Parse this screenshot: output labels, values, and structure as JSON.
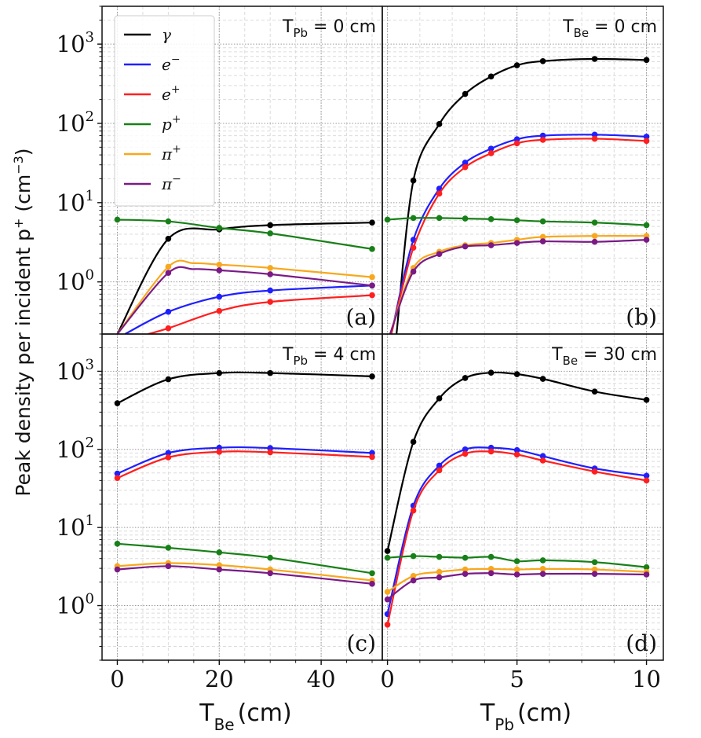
{
  "colors": {
    "gamma": "#000000",
    "e_minus": "#1f1fff",
    "e_plus": "#ff1f1f",
    "p_plus": "#188018",
    "pi_plus": "#f8a81c",
    "pi_minus": "#7a1a86"
  },
  "figure": {
    "ylabel": {
      "main": "Peak density per incident p",
      "sup": "+",
      "unit_open": " (cm",
      "unit_sup": "−3",
      "unit_close": ")"
    },
    "xlabel_left": {
      "main": "T",
      "sub": "Be",
      "unit": "(cm)"
    },
    "xlabel_right": {
      "main": "T",
      "sub": "Pb",
      "unit": "(cm)"
    },
    "legend_entries": [
      {
        "key": "gamma",
        "label": "γ",
        "sup": ""
      },
      {
        "key": "e_minus",
        "label": "e",
        "sup": "−"
      },
      {
        "key": "e_plus",
        "label": "e",
        "sup": "+"
      },
      {
        "key": "p_plus",
        "label": "p",
        "sup": "+"
      },
      {
        "key": "pi_plus",
        "label": "π",
        "sup": "+"
      },
      {
        "key": "pi_minus",
        "label": "π",
        "sup": "−"
      }
    ]
  },
  "chart_data": [
    {
      "type": "line",
      "panel": "(a)",
      "title": {
        "var": "T",
        "sub": "Pb",
        "eq": " = 0 cm"
      },
      "xlabel": "T_Be (cm)",
      "ylabel": "Peak density per incident p+ (cm−3)",
      "yscale": "log",
      "ylim": [
        0.22,
        3000
      ],
      "xlim": [
        -3,
        52
      ],
      "xticks": [
        0,
        20,
        40
      ],
      "yticks": [
        "10^0",
        "10^1",
        "10^2",
        "10^3"
      ],
      "grid": true,
      "legend": "top-left",
      "series": [
        {
          "key": "gamma",
          "x": [
            10,
            20,
            30,
            50
          ],
          "y": [
            3.5,
            4.6,
            5.2,
            5.6
          ],
          "curve_start": [
            0.0,
            0.22
          ]
        },
        {
          "key": "e_minus",
          "x": [
            10,
            20,
            30,
            50
          ],
          "y": [
            0.42,
            0.65,
            0.78,
            0.9
          ],
          "curve_start": [
            1.5,
            0.22
          ]
        },
        {
          "key": "e_plus",
          "x": [
            10,
            20,
            30,
            50
          ],
          "y": [
            0.26,
            0.43,
            0.56,
            0.68
          ],
          "curve_start": [
            6.0,
            0.22
          ]
        },
        {
          "key": "p_plus",
          "x": [
            0,
            10,
            20,
            30,
            50
          ],
          "y": [
            6.1,
            5.8,
            4.8,
            4.1,
            2.6
          ]
        },
        {
          "key": "pi_plus",
          "x": [
            10,
            20,
            30,
            50
          ],
          "y": [
            1.55,
            1.65,
            1.5,
            1.15
          ],
          "curve_start": [
            0.0,
            0.22
          ],
          "peak": [
            15,
            1.72
          ]
        },
        {
          "key": "pi_minus",
          "x": [
            10,
            20,
            30,
            50
          ],
          "y": [
            1.3,
            1.4,
            1.25,
            0.9
          ],
          "curve_start": [
            0.0,
            0.22
          ],
          "peak": [
            15,
            1.45
          ]
        }
      ]
    },
    {
      "type": "line",
      "panel": "(b)",
      "title": {
        "var": "T",
        "sub": "Be",
        "eq": " = 0 cm"
      },
      "xlabel": "T_Pb (cm)",
      "ylabel": "Peak density per incident p+ (cm−3)",
      "yscale": "log",
      "ylim": [
        0.22,
        3000
      ],
      "xlim": [
        -0.2,
        10.65
      ],
      "xticks": [
        0,
        5,
        10
      ],
      "yticks": [
        "10^0",
        "10^1",
        "10^2",
        "10^3"
      ],
      "grid": true,
      "series": [
        {
          "key": "gamma",
          "x": [
            1,
            2,
            3,
            4,
            5,
            6,
            8,
            10
          ],
          "y": [
            19,
            98,
            235,
            390,
            540,
            610,
            650,
            630
          ],
          "curve_start": [
            0.35,
            0.22
          ]
        },
        {
          "key": "e_minus",
          "x": [
            1,
            2,
            3,
            4,
            5,
            6,
            8,
            10
          ],
          "y": [
            3.4,
            15,
            32,
            48,
            63,
            70,
            72,
            68
          ],
          "curve_start": [
            0.15,
            0.22
          ]
        },
        {
          "key": "e_plus",
          "x": [
            1,
            2,
            3,
            4,
            5,
            6,
            8,
            10
          ],
          "y": [
            2.7,
            13,
            28,
            42,
            56,
            62,
            64,
            60
          ],
          "curve_start": [
            0.15,
            0.22
          ]
        },
        {
          "key": "p_plus",
          "x": [
            0,
            1,
            2,
            3,
            4,
            5,
            6,
            8,
            10
          ],
          "y": [
            6.1,
            6.4,
            6.4,
            6.3,
            6.2,
            6.0,
            5.8,
            5.6,
            5.2
          ]
        },
        {
          "key": "pi_plus",
          "x": [
            1,
            2,
            3,
            4,
            5,
            6,
            8,
            10
          ],
          "y": [
            1.5,
            2.4,
            2.9,
            3.1,
            3.4,
            3.7,
            3.8,
            3.8
          ],
          "curve_start": [
            0.1,
            0.22
          ]
        },
        {
          "key": "pi_minus",
          "x": [
            1,
            2,
            3,
            4,
            5,
            6,
            8,
            10
          ],
          "y": [
            1.35,
            2.25,
            2.8,
            2.9,
            3.1,
            3.25,
            3.2,
            3.4
          ],
          "curve_start": [
            0.1,
            0.22
          ]
        }
      ]
    },
    {
      "type": "line",
      "panel": "(c)",
      "title": {
        "var": "T",
        "sub": "Pb",
        "eq": " = 4 cm"
      },
      "xlabel": "T_Be (cm)",
      "ylabel": "Peak density per incident p+ (cm−3)",
      "yscale": "log",
      "ylim": [
        0.2,
        3000
      ],
      "xlim": [
        -3,
        52
      ],
      "xticks": [
        0,
        20,
        40
      ],
      "yticks": [
        "10^0",
        "10^1",
        "10^2",
        "10^3"
      ],
      "grid": true,
      "series": [
        {
          "key": "gamma",
          "x": [
            0,
            10,
            20,
            30,
            50
          ],
          "y": [
            390,
            790,
            950,
            950,
            860
          ]
        },
        {
          "key": "e_minus",
          "x": [
            0,
            10,
            20,
            30,
            50
          ],
          "y": [
            49,
            90,
            105,
            104,
            90
          ]
        },
        {
          "key": "e_plus",
          "x": [
            0,
            10,
            20,
            30,
            50
          ],
          "y": [
            43,
            79,
            93,
            92,
            80
          ]
        },
        {
          "key": "p_plus",
          "x": [
            0,
            10,
            20,
            30,
            50
          ],
          "y": [
            6.2,
            5.5,
            4.8,
            4.1,
            2.6
          ]
        },
        {
          "key": "pi_plus",
          "x": [
            0,
            10,
            20,
            30,
            50
          ],
          "y": [
            3.2,
            3.5,
            3.3,
            2.9,
            2.1
          ]
        },
        {
          "key": "pi_minus",
          "x": [
            0,
            10,
            20,
            30,
            50
          ],
          "y": [
            2.9,
            3.2,
            2.9,
            2.6,
            1.9
          ]
        }
      ]
    },
    {
      "type": "line",
      "panel": "(d)",
      "title": {
        "var": "T",
        "sub": "Be",
        "eq": " = 30 cm"
      },
      "xlabel": "T_Pb (cm)",
      "ylabel": "Peak density per incident p+ (cm−3)",
      "yscale": "log",
      "ylim": [
        0.2,
        3000
      ],
      "xlim": [
        -0.2,
        10.65
      ],
      "xticks": [
        0,
        5,
        10
      ],
      "yticks": [
        "10^0",
        "10^1",
        "10^2",
        "10^3"
      ],
      "grid": true,
      "series": [
        {
          "key": "gamma",
          "x": [
            0,
            1,
            2,
            3,
            4,
            5,
            6,
            8,
            10
          ],
          "y": [
            5,
            125,
            450,
            820,
            960,
            920,
            800,
            550,
            430
          ]
        },
        {
          "key": "e_minus",
          "x": [
            0,
            1,
            2,
            3,
            4,
            5,
            6,
            8,
            10
          ],
          "y": [
            0.78,
            19,
            62,
            100,
            105,
            98,
            82,
            57,
            46
          ]
        },
        {
          "key": "e_plus",
          "x": [
            0,
            1,
            2,
            3,
            4,
            5,
            6,
            8,
            10
          ],
          "y": [
            0.57,
            16.5,
            54,
            88,
            94,
            86,
            72,
            52,
            40
          ]
        },
        {
          "key": "p_plus",
          "x": [
            0,
            1,
            2,
            3,
            4,
            5,
            6,
            8,
            10
          ],
          "y": [
            4.1,
            4.3,
            4.2,
            4.1,
            4.2,
            3.7,
            3.8,
            3.6,
            3.1
          ]
        },
        {
          "key": "pi_plus",
          "x": [
            0,
            1,
            2,
            3,
            4,
            5,
            6,
            8,
            10
          ],
          "y": [
            1.5,
            2.4,
            2.7,
            2.9,
            2.95,
            2.9,
            2.95,
            2.9,
            2.7
          ]
        },
        {
          "key": "pi_minus",
          "x": [
            0,
            1,
            2,
            3,
            4,
            5,
            6,
            8,
            10
          ],
          "y": [
            1.2,
            2.1,
            2.3,
            2.55,
            2.6,
            2.5,
            2.55,
            2.55,
            2.5
          ]
        }
      ]
    }
  ]
}
